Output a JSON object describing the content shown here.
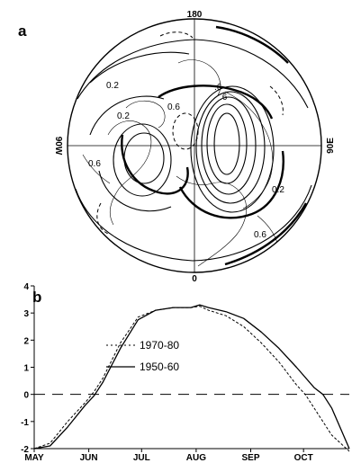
{
  "panel_a": {
    "label": "a",
    "lon_top": "180",
    "lon_bottom": "0",
    "lon_left": "90W",
    "lon_right": "90E",
    "contour_labels": [
      "0.2",
      "0.2",
      "0.6",
      "0.6",
      "0.2",
      "0.6",
      ".6",
      ".6"
    ]
  },
  "chart_data": {
    "type": "line",
    "panel_label": "b",
    "x_ticks": [
      "MAY",
      "JUN",
      "JUL",
      "AUG",
      "SEP",
      "OCT"
    ],
    "y_ticks": [
      "-2",
      "-1",
      "0",
      "1",
      "2",
      "3",
      "4"
    ],
    "ylim": [
      -2,
      4
    ],
    "x_unit": "day of year",
    "xlim": [
      121,
      300
    ],
    "x_tick_days": [
      121,
      152,
      182,
      213,
      244,
      274
    ],
    "reference_line": 0,
    "legend_location": "upper-left",
    "series": [
      {
        "name": "1970-80",
        "style": "dashed",
        "x": [
          121,
          130,
          140,
          150,
          155,
          160,
          170,
          180,
          190,
          200,
          210,
          215,
          220,
          230,
          240,
          250,
          260,
          270,
          275,
          280,
          290,
          300
        ],
        "values": [
          -2.0,
          -1.8,
          -1.0,
          -0.3,
          0.1,
          0.6,
          1.9,
          2.85,
          3.1,
          3.2,
          3.2,
          3.25,
          3.1,
          2.9,
          2.5,
          1.9,
          1.2,
          0.35,
          0.0,
          -0.5,
          -1.5,
          -2.1
        ]
      },
      {
        "name": "1950-60",
        "style": "solid",
        "x": [
          121,
          130,
          140,
          150,
          155,
          160,
          170,
          180,
          190,
          200,
          210,
          215,
          220,
          230,
          240,
          250,
          260,
          270,
          280,
          285,
          290,
          300
        ],
        "values": [
          -2.0,
          -1.9,
          -1.2,
          -0.4,
          -0.05,
          0.45,
          1.7,
          2.75,
          3.1,
          3.2,
          3.2,
          3.3,
          3.2,
          3.05,
          2.8,
          2.3,
          1.7,
          1.0,
          0.25,
          0.0,
          -0.5,
          -2.0
        ]
      }
    ]
  },
  "colors": {
    "ink": "#000000",
    "background": "#ffffff"
  }
}
